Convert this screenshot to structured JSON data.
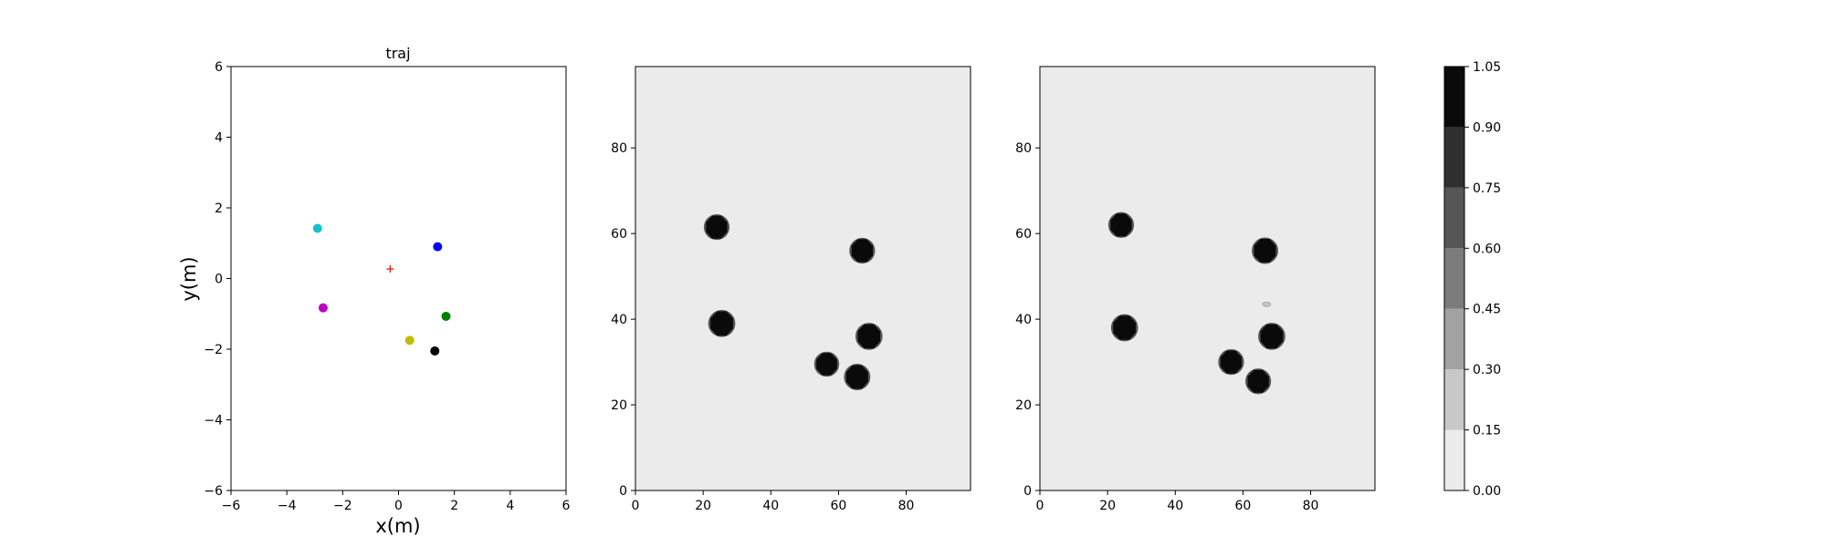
{
  "chart_data": [
    {
      "type": "scatter",
      "title": "traj",
      "xlabel": "x(m)",
      "ylabel": "y(m)",
      "xlim": [
        -6,
        6
      ],
      "ylim": [
        -6,
        6
      ],
      "xticks": [
        -6,
        -4,
        -2,
        0,
        2,
        4,
        6
      ],
      "yticks": [
        -6,
        -4,
        -2,
        0,
        2,
        4,
        6
      ],
      "points": [
        {
          "x": -2.9,
          "y": 1.42,
          "color": "#17becf",
          "marker": "dot"
        },
        {
          "x": -2.7,
          "y": -0.83,
          "color": "#bf00bf",
          "marker": "dot"
        },
        {
          "x": 1.4,
          "y": 0.9,
          "color": "#0000ff",
          "marker": "dot"
        },
        {
          "x": 1.7,
          "y": -1.07,
          "color": "#008000",
          "marker": "dot"
        },
        {
          "x": 0.4,
          "y": -1.75,
          "color": "#bfbf00",
          "marker": "dot"
        },
        {
          "x": 1.3,
          "y": -2.05,
          "color": "#000000",
          "marker": "dot"
        },
        {
          "x": -0.3,
          "y": 0.27,
          "color": "#ff0000",
          "marker": "plus"
        }
      ]
    },
    {
      "type": "heatmap",
      "xlim": [
        0,
        99
      ],
      "ylim": [
        0,
        99
      ],
      "xticks": [
        0,
        20,
        40,
        60,
        80
      ],
      "yticks": [
        0,
        20,
        40,
        60,
        80
      ],
      "background_value": 0.0,
      "blobs": [
        {
          "x": 24,
          "y": 61.5,
          "r": 3.4,
          "value": 1.0
        },
        {
          "x": 25.5,
          "y": 39,
          "r": 3.6,
          "value": 1.0
        },
        {
          "x": 67,
          "y": 56,
          "r": 3.4,
          "value": 1.0
        },
        {
          "x": 69,
          "y": 36,
          "r": 3.6,
          "value": 1.0
        },
        {
          "x": 56.5,
          "y": 29.5,
          "r": 3.3,
          "value": 1.0
        },
        {
          "x": 65.5,
          "y": 26.5,
          "r": 3.5,
          "value": 1.0
        }
      ]
    },
    {
      "type": "heatmap",
      "xlim": [
        0,
        99
      ],
      "ylim": [
        0,
        99
      ],
      "xticks": [
        0,
        20,
        40,
        60,
        80
      ],
      "yticks": [
        0,
        20,
        40,
        60,
        80
      ],
      "background_value": 0.0,
      "blobs": [
        {
          "x": 24,
          "y": 62,
          "r": 3.4,
          "value": 1.0
        },
        {
          "x": 25,
          "y": 38,
          "r": 3.6,
          "value": 1.0
        },
        {
          "x": 66.5,
          "y": 56,
          "r": 3.5,
          "value": 1.0
        },
        {
          "x": 68.5,
          "y": 36,
          "r": 3.6,
          "value": 1.0
        },
        {
          "x": 56.5,
          "y": 30,
          "r": 3.4,
          "value": 1.0
        },
        {
          "x": 64.5,
          "y": 25.5,
          "r": 3.4,
          "value": 1.0
        },
        {
          "x": 67,
          "y": 43.5,
          "r": 1.2,
          "value": 0.2
        }
      ]
    }
  ],
  "colorbar": {
    "levels": [
      0.0,
      0.15,
      0.3,
      0.45,
      0.6,
      0.75,
      0.9,
      1.05
    ],
    "tick_labels": [
      "0.00",
      "0.15",
      "0.30",
      "0.45",
      "0.60",
      "0.75",
      "0.90",
      "1.05"
    ],
    "colors": [
      "#ebebeb",
      "#c8c8c8",
      "#a2a2a2",
      "#7c7c7c",
      "#565656",
      "#2f2f2f",
      "#0a0a0a"
    ]
  }
}
